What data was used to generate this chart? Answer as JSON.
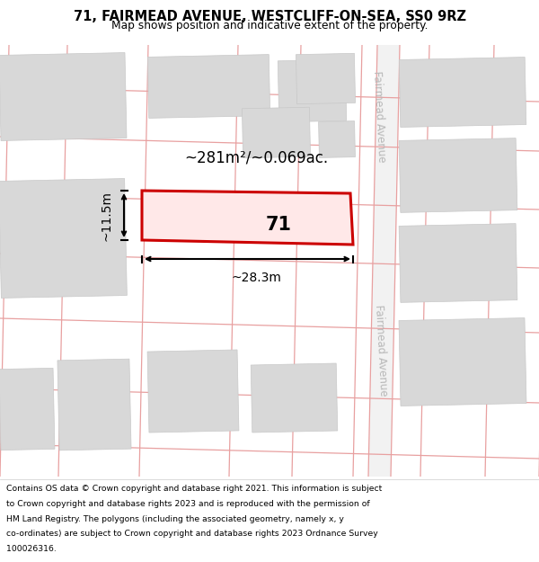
{
  "title_line1": "71, FAIRMEAD AVENUE, WESTCLIFF-ON-SEA, SS0 9RZ",
  "title_line2": "Map shows position and indicative extent of the property.",
  "map_bg": "#ffffff",
  "road_line_color": "#e8a0a0",
  "building_fill": "#d8d8d8",
  "building_edge": "#c8c8c8",
  "property_fill": "#ffe8e8",
  "property_edge": "#cc0000",
  "road_label_color": "#b8b8b8",
  "area_label": "~281m²/~0.069ac.",
  "width_label": "~28.3m",
  "height_label": "~11.5m",
  "property_label": "71",
  "footer_lines": [
    "Contains OS data © Crown copyright and database right 2021. This information is subject",
    "to Crown copyright and database rights 2023 and is reproduced with the permission of",
    "HM Land Registry. The polygons (including the associated geometry, namely x, y",
    "co-ordinates) are subject to Crown copyright and database rights 2023 Ordnance Survey",
    "100026316."
  ]
}
